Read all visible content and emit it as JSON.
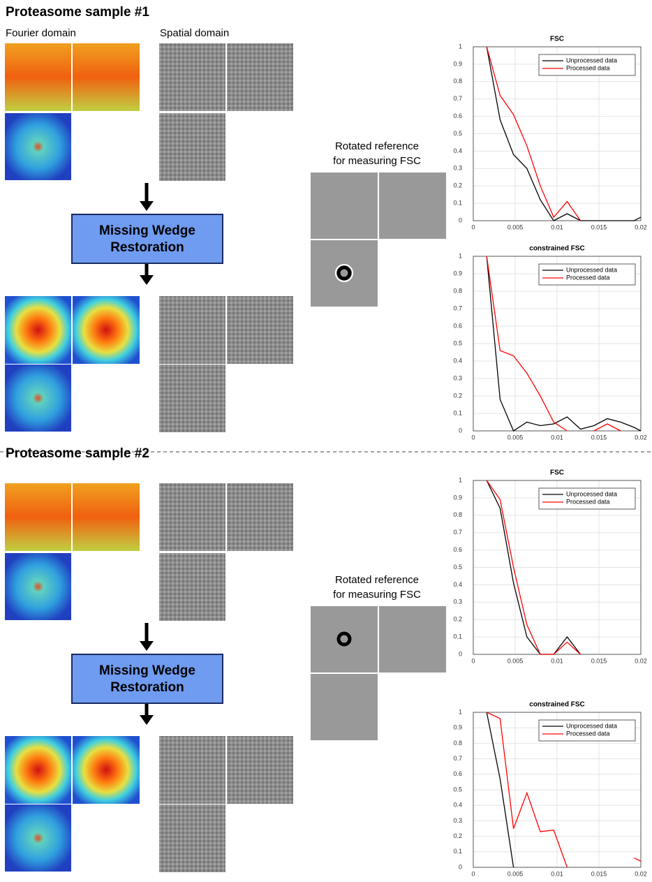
{
  "sections": [
    {
      "title": "Proteasome sample #1",
      "fourier_label": "Fourier domain",
      "spatial_label": "Spatial domain",
      "box_label": [
        "Missing Wedge",
        "Restoration"
      ],
      "reference_label": [
        "Rotated reference",
        "for measuring FSC"
      ]
    },
    {
      "title": "Proteasome sample #2",
      "box_label": [
        "Missing Wedge",
        "Restoration"
      ],
      "reference_label": [
        "Rotated reference",
        "for measuring FSC"
      ]
    }
  ],
  "chart_data": [
    {
      "type": "line",
      "title": "FSC",
      "x": [
        0.0016,
        0.0032,
        0.0048,
        0.0064,
        0.008,
        0.0096,
        0.0112,
        0.0128,
        0.0144,
        0.016,
        0.0176,
        0.0192,
        0.02
      ],
      "series": [
        {
          "name": "Unprocessed data",
          "color": "#000000",
          "values": [
            1,
            0.58,
            0.38,
            0.3,
            0.12,
            0,
            0.04,
            0,
            0,
            0,
            0,
            0,
            0.02
          ]
        },
        {
          "name": "Processed data",
          "color": "#ff0000",
          "values": [
            1,
            0.72,
            0.61,
            0.43,
            0.2,
            0.02,
            0.11,
            0,
            null,
            null,
            null,
            null,
            null
          ]
        }
      ],
      "xlim": [
        0,
        0.02
      ],
      "xticks": [
        0,
        0.005,
        0.01,
        0.015,
        0.02
      ],
      "ylim": [
        0,
        1
      ],
      "yticks": [
        0,
        0.1,
        0.2,
        0.3,
        0.4,
        0.5,
        0.6,
        0.7,
        0.8,
        0.9,
        1
      ],
      "grid": true,
      "legend": "top-right"
    },
    {
      "type": "line",
      "title": "constrained FSC",
      "x": [
        0.0016,
        0.0032,
        0.0048,
        0.0064,
        0.008,
        0.0096,
        0.0112,
        0.0128,
        0.0144,
        0.016,
        0.0176,
        0.0192,
        0.02
      ],
      "series": [
        {
          "name": "Unprocessed data",
          "color": "#000000",
          "values": [
            1,
            0.18,
            0,
            0.05,
            0.03,
            0.04,
            0.08,
            0.01,
            0.03,
            0.07,
            0.05,
            0.02,
            0
          ]
        },
        {
          "name": "Processed data",
          "color": "#ff0000",
          "values": [
            1,
            0.46,
            0.43,
            0.33,
            0.2,
            0.05,
            0,
            null,
            0,
            0.04,
            0,
            null,
            null
          ]
        }
      ],
      "xlim": [
        0,
        0.02
      ],
      "xticks": [
        0,
        0.005,
        0.01,
        0.015,
        0.02
      ],
      "ylim": [
        0,
        1
      ],
      "yticks": [
        0,
        0.1,
        0.2,
        0.3,
        0.4,
        0.5,
        0.6,
        0.7,
        0.8,
        0.9,
        1
      ],
      "grid": true,
      "legend": "top-right"
    },
    {
      "type": "line",
      "title": "FSC",
      "x": [
        0.0016,
        0.0032,
        0.0048,
        0.0064,
        0.008,
        0.0096,
        0.0112,
        0.0128,
        0.0144,
        0.016,
        0.0176,
        0.0192,
        0.02
      ],
      "series": [
        {
          "name": "Unprocessed data",
          "color": "#000000",
          "values": [
            1,
            0.84,
            0.41,
            0.1,
            0,
            0,
            0.1,
            0,
            null,
            null,
            null,
            null,
            null
          ]
        },
        {
          "name": "Processed data",
          "color": "#ff0000",
          "values": [
            1,
            0.89,
            0.5,
            0.17,
            0,
            0,
            0.07,
            0,
            null,
            null,
            null,
            null,
            null
          ]
        }
      ],
      "xlim": [
        0,
        0.02
      ],
      "xticks": [
        0,
        0.005,
        0.01,
        0.015,
        0.02
      ],
      "ylim": [
        0,
        1
      ],
      "yticks": [
        0,
        0.1,
        0.2,
        0.3,
        0.4,
        0.5,
        0.6,
        0.7,
        0.8,
        0.9,
        1
      ],
      "grid": true,
      "legend": "top-right"
    },
    {
      "type": "line",
      "title": "constrained FSC",
      "x": [
        0.0016,
        0.0032,
        0.0048,
        0.0064,
        0.008,
        0.0096,
        0.0112,
        0.0128,
        0.0144,
        0.016,
        0.0176,
        0.0192,
        0.02
      ],
      "series": [
        {
          "name": "Unprocessed data",
          "color": "#000000",
          "values": [
            1,
            0.57,
            0,
            null,
            null,
            null,
            null,
            null,
            null,
            null,
            null,
            null,
            null
          ]
        },
        {
          "name": "Processed data",
          "color": "#ff0000",
          "values": [
            1,
            0.96,
            0.25,
            0.48,
            0.23,
            0.24,
            0,
            null,
            null,
            null,
            null,
            0.06,
            0.04
          ]
        }
      ],
      "xlim": [
        0,
        0.02
      ],
      "xticks": [
        0,
        0.005,
        0.01,
        0.015,
        0.02
      ],
      "ylim": [
        0,
        1
      ],
      "yticks": [
        0,
        0.1,
        0.2,
        0.3,
        0.4,
        0.5,
        0.6,
        0.7,
        0.8,
        0.9,
        1
      ],
      "grid": true,
      "legend": "top-right"
    }
  ]
}
